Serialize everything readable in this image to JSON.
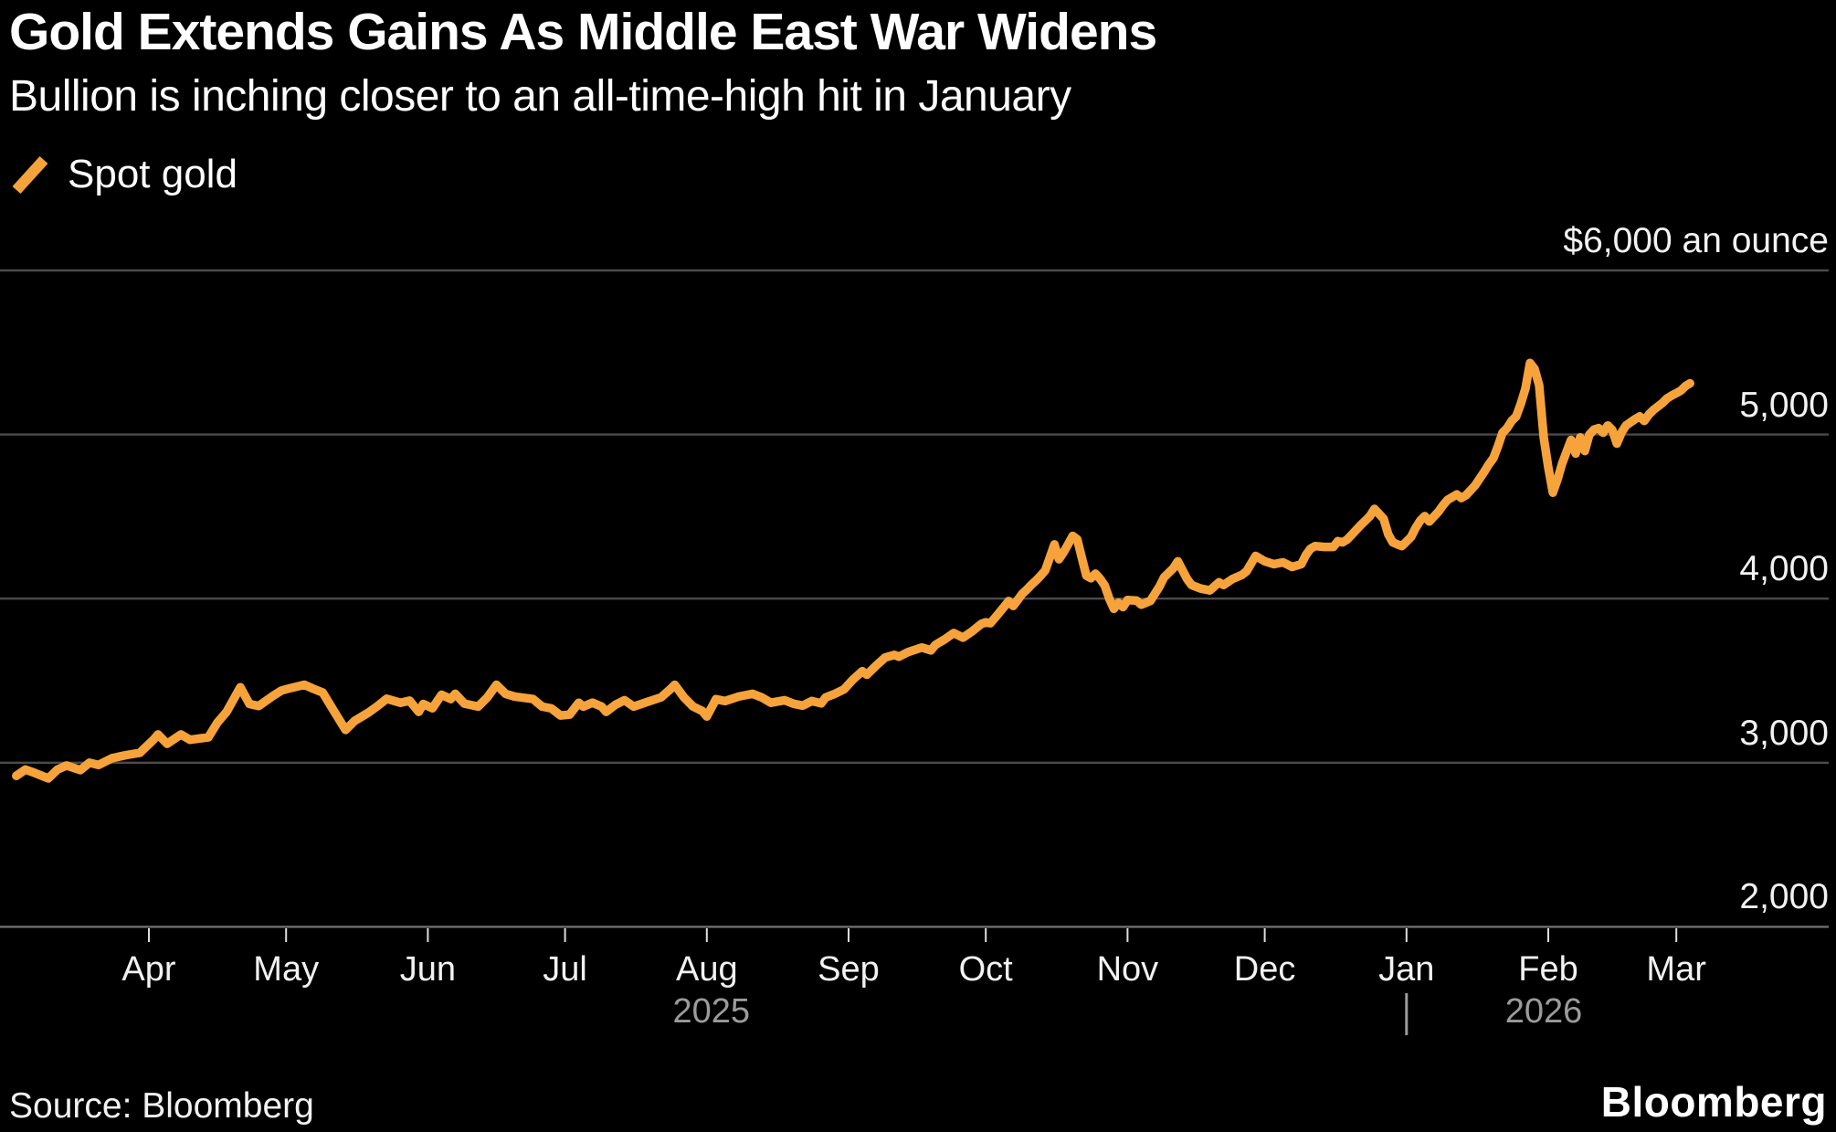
{
  "header": {
    "title": "Gold Extends Gains As Middle East War Widens",
    "subtitle": "Bullion is inching closer to an all-time-high hit in January"
  },
  "legend": {
    "items": [
      {
        "label": "Spot gold",
        "color": "#F7A33B"
      }
    ]
  },
  "footer": {
    "source": "Source: Bloomberg",
    "logo": "Bloomberg"
  },
  "colors": {
    "background": "#000000",
    "line": "#F7A33B",
    "gridline": "#4b4b4b",
    "baseline": "#6f6f6f",
    "tick": "#dedede",
    "year_text": "#9b9b9b",
    "label_text": "#f2f2f2"
  },
  "chart_data": {
    "type": "line",
    "title": "Gold Extends Gains As Middle East War Widens",
    "subtitle": "Bullion is inching closer to an all-time-high hit in January",
    "xlabel": "",
    "ylabel": "$ an ounce",
    "grid": "horizontal",
    "legend_position": "top-left",
    "y_axis": {
      "min": 2000,
      "max": 6000,
      "gridlines": [
        6000,
        5000,
        4000,
        3000,
        2000
      ],
      "tick_labels": [
        "$6,000 an ounce",
        "5,000",
        "4,000",
        "3,000",
        "2,000"
      ]
    },
    "x_axis": {
      "domain": [
        "2025-03-03",
        "2026-03-04"
      ],
      "ticks": [
        {
          "label": "Apr",
          "date": "2025-04-01"
        },
        {
          "label": "May",
          "date": "2025-05-01"
        },
        {
          "label": "Jun",
          "date": "2025-06-01"
        },
        {
          "label": "Jul",
          "date": "2025-07-01"
        },
        {
          "label": "Aug",
          "date": "2025-08-01"
        },
        {
          "label": "Sep",
          "date": "2025-09-01"
        },
        {
          "label": "Oct",
          "date": "2025-10-01"
        },
        {
          "label": "Nov",
          "date": "2025-11-01"
        },
        {
          "label": "Dec",
          "date": "2025-12-01"
        },
        {
          "label": "Jan",
          "date": "2026-01-01"
        },
        {
          "label": "Feb",
          "date": "2026-02-01"
        },
        {
          "label": "Mar",
          "date": "2026-03-01"
        }
      ],
      "year_labels": [
        {
          "label": "2025",
          "center_date": "2025-08-02"
        },
        {
          "label": "2026",
          "center_date": "2026-01-31"
        }
      ],
      "year_divider_date": "2026-01-01"
    },
    "series": [
      {
        "name": "Spot gold",
        "color": "#F7A33B",
        "points": [
          [
            "2025-03-03",
            2920
          ],
          [
            "2025-03-05",
            2958
          ],
          [
            "2025-03-07",
            2938
          ],
          [
            "2025-03-10",
            2905
          ],
          [
            "2025-03-12",
            2958
          ],
          [
            "2025-03-14",
            2983
          ],
          [
            "2025-03-17",
            2955
          ],
          [
            "2025-03-19",
            3000
          ],
          [
            "2025-03-21",
            2986
          ],
          [
            "2025-03-24",
            3028
          ],
          [
            "2025-03-27",
            3046
          ],
          [
            "2025-03-30",
            3060
          ],
          [
            "2025-04-02",
            3140
          ],
          [
            "2025-04-03",
            3172
          ],
          [
            "2025-04-05",
            3115
          ],
          [
            "2025-04-08",
            3172
          ],
          [
            "2025-04-10",
            3140
          ],
          [
            "2025-04-14",
            3155
          ],
          [
            "2025-04-16",
            3245
          ],
          [
            "2025-04-18",
            3310
          ],
          [
            "2025-04-21",
            3460
          ],
          [
            "2025-04-23",
            3358
          ],
          [
            "2025-04-25",
            3345
          ],
          [
            "2025-04-28",
            3405
          ],
          [
            "2025-04-30",
            3440
          ],
          [
            "2025-05-02",
            3455
          ],
          [
            "2025-05-05",
            3475
          ],
          [
            "2025-05-07",
            3450
          ],
          [
            "2025-05-09",
            3428
          ],
          [
            "2025-05-12",
            3290
          ],
          [
            "2025-05-14",
            3200
          ],
          [
            "2025-05-16",
            3255
          ],
          [
            "2025-05-19",
            3305
          ],
          [
            "2025-05-21",
            3345
          ],
          [
            "2025-05-23",
            3390
          ],
          [
            "2025-05-26",
            3365
          ],
          [
            "2025-05-28",
            3378
          ],
          [
            "2025-05-30",
            3310
          ],
          [
            "2025-05-31",
            3358
          ],
          [
            "2025-06-02",
            3332
          ],
          [
            "2025-06-04",
            3414
          ],
          [
            "2025-06-06",
            3388
          ],
          [
            "2025-06-07",
            3420
          ],
          [
            "2025-06-09",
            3360
          ],
          [
            "2025-06-12",
            3342
          ],
          [
            "2025-06-14",
            3398
          ],
          [
            "2025-06-16",
            3475
          ],
          [
            "2025-06-18",
            3420
          ],
          [
            "2025-06-20",
            3403
          ],
          [
            "2025-06-24",
            3388
          ],
          [
            "2025-06-26",
            3342
          ],
          [
            "2025-06-28",
            3331
          ],
          [
            "2025-06-30",
            3288
          ],
          [
            "2025-07-02",
            3293
          ],
          [
            "2025-07-04",
            3365
          ],
          [
            "2025-07-05",
            3342
          ],
          [
            "2025-07-07",
            3366
          ],
          [
            "2025-07-09",
            3342
          ],
          [
            "2025-07-10",
            3310
          ],
          [
            "2025-07-12",
            3353
          ],
          [
            "2025-07-14",
            3381
          ],
          [
            "2025-07-16",
            3342
          ],
          [
            "2025-07-19",
            3370
          ],
          [
            "2025-07-22",
            3398
          ],
          [
            "2025-07-24",
            3447
          ],
          [
            "2025-07-25",
            3475
          ],
          [
            "2025-07-27",
            3398
          ],
          [
            "2025-07-29",
            3342
          ],
          [
            "2025-07-31",
            3315
          ],
          [
            "2025-08-01",
            3282
          ],
          [
            "2025-08-03",
            3387
          ],
          [
            "2025-08-05",
            3376
          ],
          [
            "2025-08-08",
            3403
          ],
          [
            "2025-08-11",
            3420
          ],
          [
            "2025-08-13",
            3398
          ],
          [
            "2025-08-15",
            3365
          ],
          [
            "2025-08-18",
            3381
          ],
          [
            "2025-08-20",
            3359
          ],
          [
            "2025-08-22",
            3348
          ],
          [
            "2025-08-24",
            3376
          ],
          [
            "2025-08-26",
            3362
          ],
          [
            "2025-08-27",
            3398
          ],
          [
            "2025-08-29",
            3420
          ],
          [
            "2025-08-31",
            3447
          ],
          [
            "2025-09-02",
            3508
          ],
          [
            "2025-09-04",
            3558
          ],
          [
            "2025-09-05",
            3536
          ],
          [
            "2025-09-07",
            3591
          ],
          [
            "2025-09-09",
            3641
          ],
          [
            "2025-09-11",
            3657
          ],
          [
            "2025-09-12",
            3646
          ],
          [
            "2025-09-14",
            3674
          ],
          [
            "2025-09-17",
            3702
          ],
          [
            "2025-09-19",
            3685
          ],
          [
            "2025-09-20",
            3718
          ],
          [
            "2025-09-22",
            3751
          ],
          [
            "2025-09-24",
            3790
          ],
          [
            "2025-09-26",
            3762
          ],
          [
            "2025-09-28",
            3800
          ],
          [
            "2025-09-30",
            3845
          ],
          [
            "2025-10-01",
            3856
          ],
          [
            "2025-10-02",
            3850
          ],
          [
            "2025-10-03",
            3882
          ],
          [
            "2025-10-05",
            3950
          ],
          [
            "2025-10-06",
            3985
          ],
          [
            "2025-10-07",
            3955
          ],
          [
            "2025-10-08",
            3992
          ],
          [
            "2025-10-09",
            4030
          ],
          [
            "2025-10-10",
            4055
          ],
          [
            "2025-10-11",
            4085
          ],
          [
            "2025-10-12",
            4110
          ],
          [
            "2025-10-13",
            4140
          ],
          [
            "2025-10-14",
            4172
          ],
          [
            "2025-10-15",
            4250
          ],
          [
            "2025-10-16",
            4330
          ],
          [
            "2025-10-17",
            4240
          ],
          [
            "2025-10-18",
            4282
          ],
          [
            "2025-10-19",
            4330
          ],
          [
            "2025-10-20",
            4382
          ],
          [
            "2025-10-21",
            4362
          ],
          [
            "2025-10-22",
            4250
          ],
          [
            "2025-10-23",
            4140
          ],
          [
            "2025-10-24",
            4125
          ],
          [
            "2025-10-25",
            4152
          ],
          [
            "2025-10-26",
            4120
          ],
          [
            "2025-10-27",
            4080
          ],
          [
            "2025-10-28",
            4000
          ],
          [
            "2025-10-29",
            3938
          ],
          [
            "2025-10-30",
            3975
          ],
          [
            "2025-10-31",
            3948
          ],
          [
            "2025-11-01",
            3991
          ],
          [
            "2025-11-03",
            3988
          ],
          [
            "2025-11-04",
            3963
          ],
          [
            "2025-11-06",
            3986
          ],
          [
            "2025-11-08",
            4074
          ],
          [
            "2025-11-09",
            4130
          ],
          [
            "2025-11-11",
            4185
          ],
          [
            "2025-11-12",
            4227
          ],
          [
            "2025-11-14",
            4120
          ],
          [
            "2025-11-15",
            4083
          ],
          [
            "2025-11-17",
            4061
          ],
          [
            "2025-11-19",
            4050
          ],
          [
            "2025-11-21",
            4099
          ],
          [
            "2025-11-22",
            4083
          ],
          [
            "2025-11-24",
            4120
          ],
          [
            "2025-11-26",
            4144
          ],
          [
            "2025-11-27",
            4166
          ],
          [
            "2025-11-29",
            4260
          ],
          [
            "2025-12-01",
            4228
          ],
          [
            "2025-12-03",
            4210
          ],
          [
            "2025-12-05",
            4221
          ],
          [
            "2025-12-07",
            4193
          ],
          [
            "2025-12-09",
            4210
          ],
          [
            "2025-12-10",
            4265
          ],
          [
            "2025-12-11",
            4304
          ],
          [
            "2025-12-12",
            4320
          ],
          [
            "2025-12-14",
            4315
          ],
          [
            "2025-12-16",
            4315
          ],
          [
            "2025-12-17",
            4350
          ],
          [
            "2025-12-18",
            4343
          ],
          [
            "2025-12-19",
            4359
          ],
          [
            "2025-12-22",
            4448
          ],
          [
            "2025-12-23",
            4475
          ],
          [
            "2025-12-24",
            4503
          ],
          [
            "2025-12-25",
            4547
          ],
          [
            "2025-12-27",
            4486
          ],
          [
            "2025-12-28",
            4392
          ],
          [
            "2025-12-29",
            4343
          ],
          [
            "2025-12-30",
            4331
          ],
          [
            "2025-12-31",
            4320
          ],
          [
            "2026-01-02",
            4376
          ],
          [
            "2026-01-03",
            4431
          ],
          [
            "2026-01-04",
            4475
          ],
          [
            "2026-01-05",
            4503
          ],
          [
            "2026-01-06",
            4470
          ],
          [
            "2026-01-08",
            4530
          ],
          [
            "2026-01-09",
            4569
          ],
          [
            "2026-01-10",
            4602
          ],
          [
            "2026-01-12",
            4635
          ],
          [
            "2026-01-13",
            4613
          ],
          [
            "2026-01-14",
            4630
          ],
          [
            "2026-01-16",
            4690
          ],
          [
            "2026-01-18",
            4773
          ],
          [
            "2026-01-19",
            4818
          ],
          [
            "2026-01-20",
            4856
          ],
          [
            "2026-01-21",
            4928
          ],
          [
            "2026-01-22",
            5011
          ],
          [
            "2026-01-23",
            5039
          ],
          [
            "2026-01-24",
            5083
          ],
          [
            "2026-01-25",
            5110
          ],
          [
            "2026-01-26",
            5188
          ],
          [
            "2026-01-27",
            5280
          ],
          [
            "2026-01-28",
            5436
          ],
          [
            "2026-01-29",
            5400
          ],
          [
            "2026-01-30",
            5300
          ],
          [
            "2026-01-31",
            4983
          ],
          [
            "2026-02-01",
            4800
          ],
          [
            "2026-02-02",
            4646
          ],
          [
            "2026-02-03",
            4724
          ],
          [
            "2026-02-04",
            4820
          ],
          [
            "2026-02-05",
            4895
          ],
          [
            "2026-02-06",
            4967
          ],
          [
            "2026-02-07",
            4884
          ],
          [
            "2026-02-08",
            4983
          ],
          [
            "2026-02-09",
            4900
          ],
          [
            "2026-02-10",
            5000
          ],
          [
            "2026-02-11",
            5030
          ],
          [
            "2026-02-12",
            5039
          ],
          [
            "2026-02-13",
            5011
          ],
          [
            "2026-02-14",
            5055
          ],
          [
            "2026-02-15",
            5028
          ],
          [
            "2026-02-16",
            4945
          ],
          [
            "2026-02-17",
            5011
          ],
          [
            "2026-02-18",
            5055
          ],
          [
            "2026-02-20",
            5094
          ],
          [
            "2026-02-21",
            5110
          ],
          [
            "2026-02-22",
            5083
          ],
          [
            "2026-02-23",
            5122
          ],
          [
            "2026-02-24",
            5149
          ],
          [
            "2026-02-26",
            5193
          ],
          [
            "2026-02-27",
            5221
          ],
          [
            "2026-02-28",
            5238
          ],
          [
            "2026-03-01",
            5252
          ],
          [
            "2026-03-02",
            5268
          ],
          [
            "2026-03-03",
            5295
          ],
          [
            "2026-03-04",
            5312
          ]
        ]
      }
    ]
  }
}
